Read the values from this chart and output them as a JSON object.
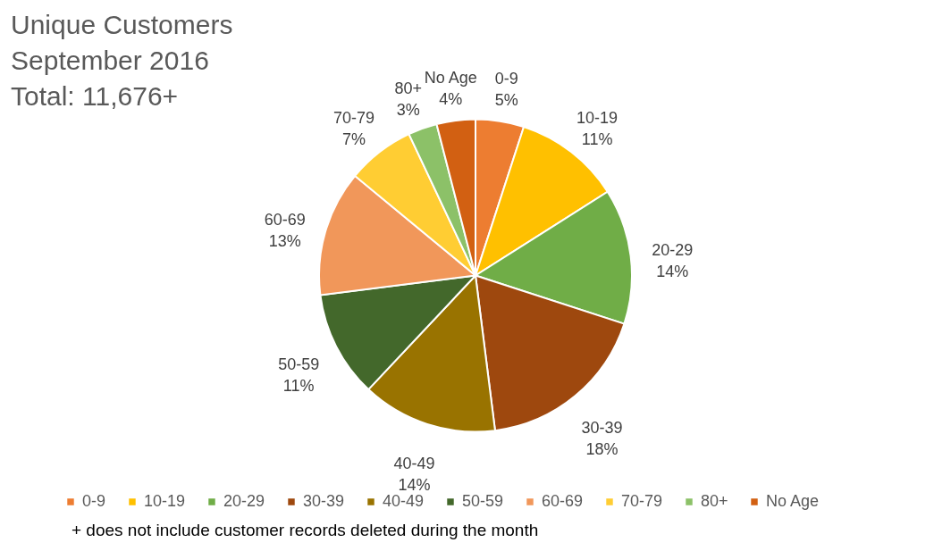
{
  "chart_data": {
    "type": "pie",
    "title": "Unique Customers\nSeptember 2016\nTotal: 11,676+",
    "categories": [
      "0-9",
      "10-19",
      "20-29",
      "30-39",
      "40-49",
      "50-59",
      "60-69",
      "70-79",
      "80+",
      "No Age"
    ],
    "values": [
      5,
      11,
      14,
      18,
      14,
      11,
      13,
      7,
      3,
      4
    ],
    "colors": [
      "#ed7d31",
      "#ffc000",
      "#70ad47",
      "#9e480e",
      "#997300",
      "#43682b",
      "#f1975a",
      "#ffcd33",
      "#8cc168",
      "#d26012"
    ],
    "value_labels": [
      "5%",
      "11%",
      "14%",
      "18%",
      "14%",
      "11%",
      "13%",
      "7%",
      "3%",
      "4%"
    ],
    "legend": "bottom",
    "annotations": [
      "+ does not include customer records deleted during the month"
    ]
  }
}
